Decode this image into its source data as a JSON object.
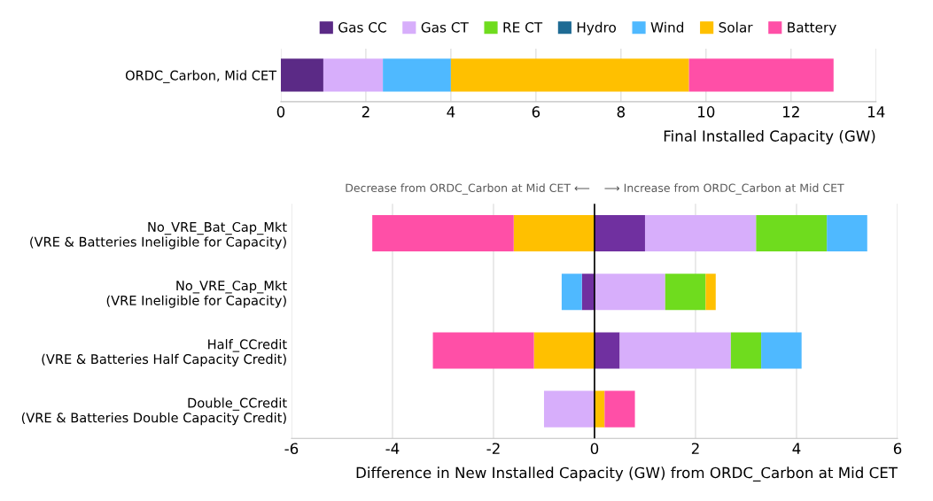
{
  "chart_data": [
    {
      "type": "bar",
      "orientation": "horizontal",
      "stacked": true,
      "categories": [
        "ORDC_Carbon, Mid CET"
      ],
      "xlabel": "Final Installed Capacity (GW)",
      "xlim": [
        0,
        14
      ],
      "xticks": [
        0,
        2,
        4,
        6,
        8,
        10,
        12,
        14
      ],
      "grid": "x",
      "legend": "top",
      "series": [
        {
          "name": "Gas CC",
          "color": "#5b2a86",
          "values": [
            1.0
          ]
        },
        {
          "name": "Gas CT",
          "color": "#d7aefb",
          "values": [
            1.4
          ]
        },
        {
          "name": "RE CT",
          "color": "#6fdc1e",
          "values": [
            0
          ]
        },
        {
          "name": "Hydro",
          "color": "#1f6b94",
          "values": [
            0
          ]
        },
        {
          "name": "Wind",
          "color": "#4fb9ff",
          "values": [
            1.6
          ]
        },
        {
          "name": "Solar",
          "color": "#ffc000",
          "values": [
            5.6
          ]
        },
        {
          "name": "Battery",
          "color": "#ff4fa7",
          "values": [
            3.4
          ]
        }
      ]
    },
    {
      "type": "bar",
      "orientation": "horizontal",
      "stacked": true,
      "categories": [
        "No_VRE_Bat_Cap_Mkt\n(VRE & Batteries Ineligible for Capacity)",
        "No_VRE_Cap_Mkt\n(VRE Ineligible for Capacity)",
        "Half_CCredit\n(VRE & Batteries Half Capacity Credit)",
        "Double_CCredit\n(VRE & Batteries Double Capacity Credit)"
      ],
      "xlabel": "Difference in New Installed Capacity (GW) from ORDC_Carbon at Mid CET",
      "xlim": [
        -6,
        6
      ],
      "xticks": [
        -6,
        -4,
        -2,
        0,
        2,
        4,
        6
      ],
      "grid": "x",
      "annotations": [
        "Decrease from ORDC_Carbon at Mid CET ⟵    ⟶ Increase from ORDC_Carbon at Mid CET"
      ],
      "ref_lines": [
        {
          "axis": "x",
          "value": 0,
          "color": "#000000"
        }
      ],
      "series": [
        {
          "color": "#7030a0",
          "values": [
            1.0,
            -0.25,
            0.5,
            0
          ]
        },
        {
          "color": "#d7aefb",
          "values": [
            2.2,
            1.4,
            2.2,
            -1.0
          ]
        },
        {
          "color": "#6fdc1e",
          "values": [
            1.4,
            0.8,
            0.6,
            0
          ]
        },
        {
          "color": "#1f6b94",
          "values": [
            0,
            0,
            0,
            0
          ]
        },
        {
          "color": "#4fb9ff",
          "values": [
            0.8,
            -0.4,
            0.8,
            0
          ]
        },
        {
          "color": "#ffc000",
          "values": [
            -1.6,
            0.2,
            -1.2,
            0.2
          ]
        },
        {
          "color": "#ff4fa7",
          "values": [
            -2.8,
            0,
            -2.0,
            0.6
          ]
        }
      ]
    }
  ]
}
